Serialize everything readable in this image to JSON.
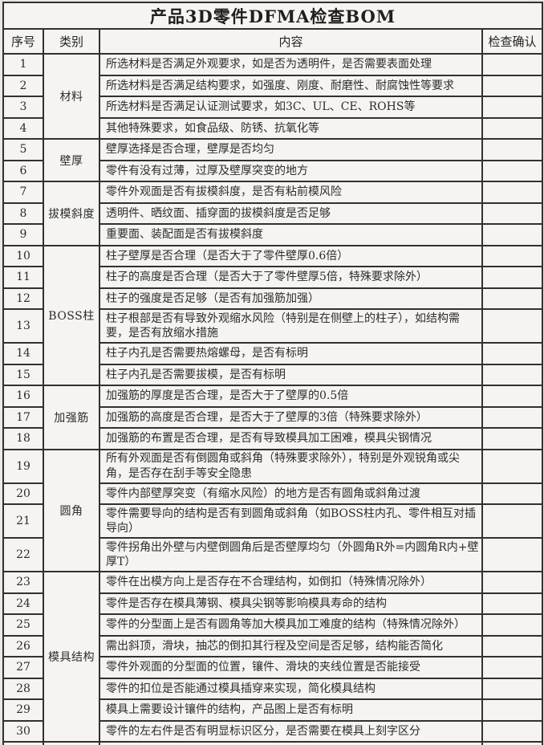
{
  "title": "产品3D零件DFMA检查BOM",
  "header": {
    "no": "序号",
    "category": "类别",
    "content": "内容",
    "check": "检查确认"
  },
  "tall_rows": [
    13,
    19,
    21,
    22
  ],
  "categories": [
    {
      "name": "材料",
      "items": [
        {
          "no": "1",
          "content": "所选材料是否满足外观要求，如是否为透明件，是否需要表面处理"
        },
        {
          "no": "2",
          "content": "所选材料是否满足结构要求，如强度、刚度、耐磨性、耐腐蚀性等要求"
        },
        {
          "no": "3",
          "content": "所选材料是否满足认证测试要求，如3C、UL、CE、ROHS等"
        },
        {
          "no": "4",
          "content": "其他特殊要求，如食品级、防锈、抗氧化等"
        }
      ]
    },
    {
      "name": "壁厚",
      "items": [
        {
          "no": "5",
          "content": "壁厚选择是否合理，壁厚是否均匀"
        },
        {
          "no": "6",
          "content": "零件有没有过薄，过厚及壁厚突变的地方"
        }
      ]
    },
    {
      "name": "拔模斜度",
      "items": [
        {
          "no": "7",
          "content": "零件外观面是否有拔模斜度，是否有粘前模风险"
        },
        {
          "no": "8",
          "content": "透明件、晒纹面、插穿面的拔模斜度是否足够"
        },
        {
          "no": "9",
          "content": "重要面、装配面是否有拔模斜度"
        }
      ]
    },
    {
      "name": "BOSS柱",
      "items": [
        {
          "no": "10",
          "content": "柱子壁厚是否合理（是否大于了零件壁厚0.6倍）"
        },
        {
          "no": "11",
          "content": "柱子的高度是否合理（是否大于了零件壁厚5倍，特殊要求除外）"
        },
        {
          "no": "12",
          "content": "柱子的强度是否足够（是否有加强筋加强）"
        },
        {
          "no": "13",
          "content": "柱子根部是否有导致外观缩水风险（特别是在侧壁上的柱子），如结构需要，是否有放缩水措施"
        },
        {
          "no": "14",
          "content": "柱子内孔是否需要热熔螺母，是否有标明"
        },
        {
          "no": "15",
          "content": "柱子内孔是否需要拔模，是否有标明"
        }
      ]
    },
    {
      "name": "加强筋",
      "items": [
        {
          "no": "16",
          "content": "加强筋的厚度是否合理，是否大于了壁厚的0.5倍"
        },
        {
          "no": "17",
          "content": "加强筋的高度是否合理，是否大于了壁厚的3倍（特殊要求除外）"
        },
        {
          "no": "18",
          "content": "加强筋的布置是否合理，是否有导致模具加工困难，模具尖钢情况"
        }
      ]
    },
    {
      "name": "圆角",
      "items": [
        {
          "no": "19",
          "content": "所有外观面是否有倒圆角或斜角（特殊要求除外），特别是外观锐角或尖角，是否存在刮手等安全隐患"
        },
        {
          "no": "20",
          "content": "零件内部壁厚突变（有缩水风险）的地方是否有圆角或斜角过渡"
        },
        {
          "no": "21",
          "content": "零件需要导向的结构是否有到圆角或斜角（如BOSS柱内孔、零件相互对插导向）"
        },
        {
          "no": "22",
          "content": "零件拐角出外壁与内壁倒圆角后是否壁厚均匀（外圆角R外=内圆角R内+壁厚T）"
        }
      ]
    },
    {
      "name": "模具结构",
      "items": [
        {
          "no": "23",
          "content": "零件在出模方向上是否存在不合理结构，如倒扣（特殊情况除外）"
        },
        {
          "no": "24",
          "content": "零件是否存在模具薄钢、模具尖钢等影响模具寿命的结构"
        },
        {
          "no": "25",
          "content": "零件的分型面上是否有圆角等加大模具加工难度的结构（特殊情况除外）"
        },
        {
          "no": "26",
          "content": "需出斜顶，滑块，抽芯的倒扣其行程及空间是否足够，结构能否简化"
        },
        {
          "no": "27",
          "content": "零件外观面的分型面的位置，镶件、滑块的夹线位置是否能接受"
        },
        {
          "no": "28",
          "content": "零件的扣位是否能通过模具插穿来实现，简化模具结构"
        },
        {
          "no": "29",
          "content": "模具上需要设计镶件的结构，产品图上是否有标明"
        },
        {
          "no": "30",
          "content": "零件的左右件是否有明显标识区分，是否需要在模具上刻字区分"
        }
      ]
    }
  ],
  "colors": {
    "ink": "#2c2c2c",
    "paper": "#f2f1ee",
    "border": "#33312e"
  }
}
